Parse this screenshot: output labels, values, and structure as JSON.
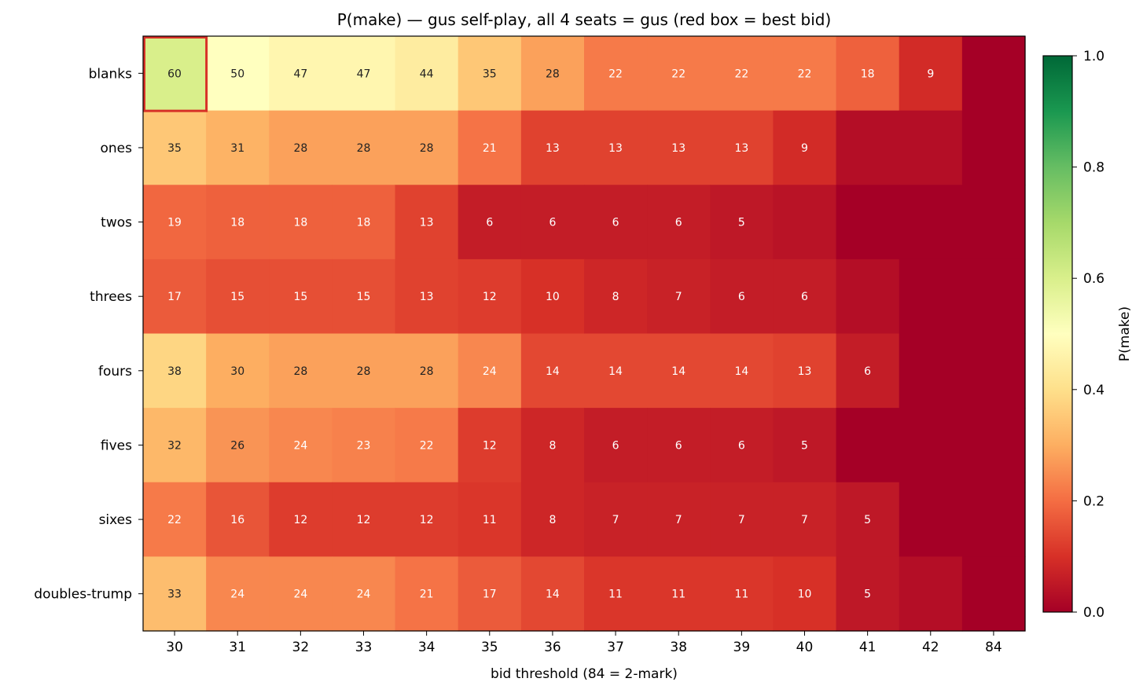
{
  "chart_data": {
    "type": "heatmap",
    "title": "P(make) — gus self-play, all 4 seats = gus  (red box = best bid)",
    "xlabel": "bid threshold (84 = 2-mark)",
    "ylabel": "",
    "x_categories": [
      "30",
      "31",
      "32",
      "33",
      "34",
      "35",
      "36",
      "37",
      "38",
      "39",
      "40",
      "41",
      "42",
      "84"
    ],
    "y_categories": [
      "blanks",
      "ones",
      "twos",
      "threes",
      "fours",
      "fives",
      "sixes",
      "doubles-trump"
    ],
    "colorbar": {
      "label": "P(make)",
      "range": [
        0.0,
        1.0
      ],
      "ticks": [
        "0.0",
        "0.2",
        "0.4",
        "0.6",
        "0.8",
        "1.0"
      ],
      "colormap": "RdYlGn"
    },
    "cell_label_units": "percent",
    "values": [
      [
        60,
        50,
        47,
        47,
        44,
        35,
        28,
        22,
        22,
        22,
        22,
        18,
        9,
        0
      ],
      [
        35,
        31,
        28,
        28,
        28,
        21,
        13,
        13,
        13,
        13,
        9,
        3,
        3,
        0
      ],
      [
        19,
        18,
        18,
        18,
        13,
        6,
        6,
        6,
        6,
        5,
        4,
        0,
        0,
        0
      ],
      [
        17,
        15,
        15,
        15,
        13,
        12,
        10,
        8,
        7,
        6,
        6,
        3,
        0,
        0
      ],
      [
        38,
        30,
        28,
        28,
        28,
        24,
        14,
        14,
        14,
        14,
        13,
        6,
        0,
        0
      ],
      [
        32,
        26,
        24,
        23,
        22,
        12,
        8,
        6,
        6,
        6,
        5,
        0,
        0,
        0
      ],
      [
        22,
        16,
        12,
        12,
        12,
        11,
        8,
        7,
        7,
        7,
        7,
        5,
        0,
        0
      ],
      [
        33,
        24,
        24,
        24,
        21,
        17,
        14,
        11,
        11,
        11,
        10,
        5,
        3,
        0
      ]
    ],
    "labels": [
      [
        "60",
        "50",
        "47",
        "47",
        "44",
        "35",
        "28",
        "22",
        "22",
        "22",
        "22",
        "18",
        "9",
        null
      ],
      [
        "35",
        "31",
        "28",
        "28",
        "28",
        "21",
        "13",
        "13",
        "13",
        "13",
        "9",
        null,
        null,
        null
      ],
      [
        "19",
        "18",
        "18",
        "18",
        "13",
        "6",
        "6",
        "6",
        "6",
        "5",
        null,
        null,
        null,
        null
      ],
      [
        "17",
        "15",
        "15",
        "15",
        "13",
        "12",
        "10",
        "8",
        "7",
        "6",
        "6",
        null,
        null,
        null
      ],
      [
        "38",
        "30",
        "28",
        "28",
        "28",
        "24",
        "14",
        "14",
        "14",
        "14",
        "13",
        "6",
        null,
        null
      ],
      [
        "32",
        "26",
        "24",
        "23",
        "22",
        "12",
        "8",
        "6",
        "6",
        "6",
        "5",
        null,
        null,
        null
      ],
      [
        "22",
        "16",
        "12",
        "12",
        "12",
        "11",
        "8",
        "7",
        "7",
        "7",
        "7",
        "5",
        null,
        null
      ],
      [
        "33",
        "24",
        "24",
        "24",
        "21",
        "17",
        "14",
        "11",
        "11",
        "11",
        "10",
        "5",
        null,
        null
      ]
    ],
    "highlight": {
      "row": "blanks",
      "col": "30",
      "color": "#d73027"
    }
  }
}
